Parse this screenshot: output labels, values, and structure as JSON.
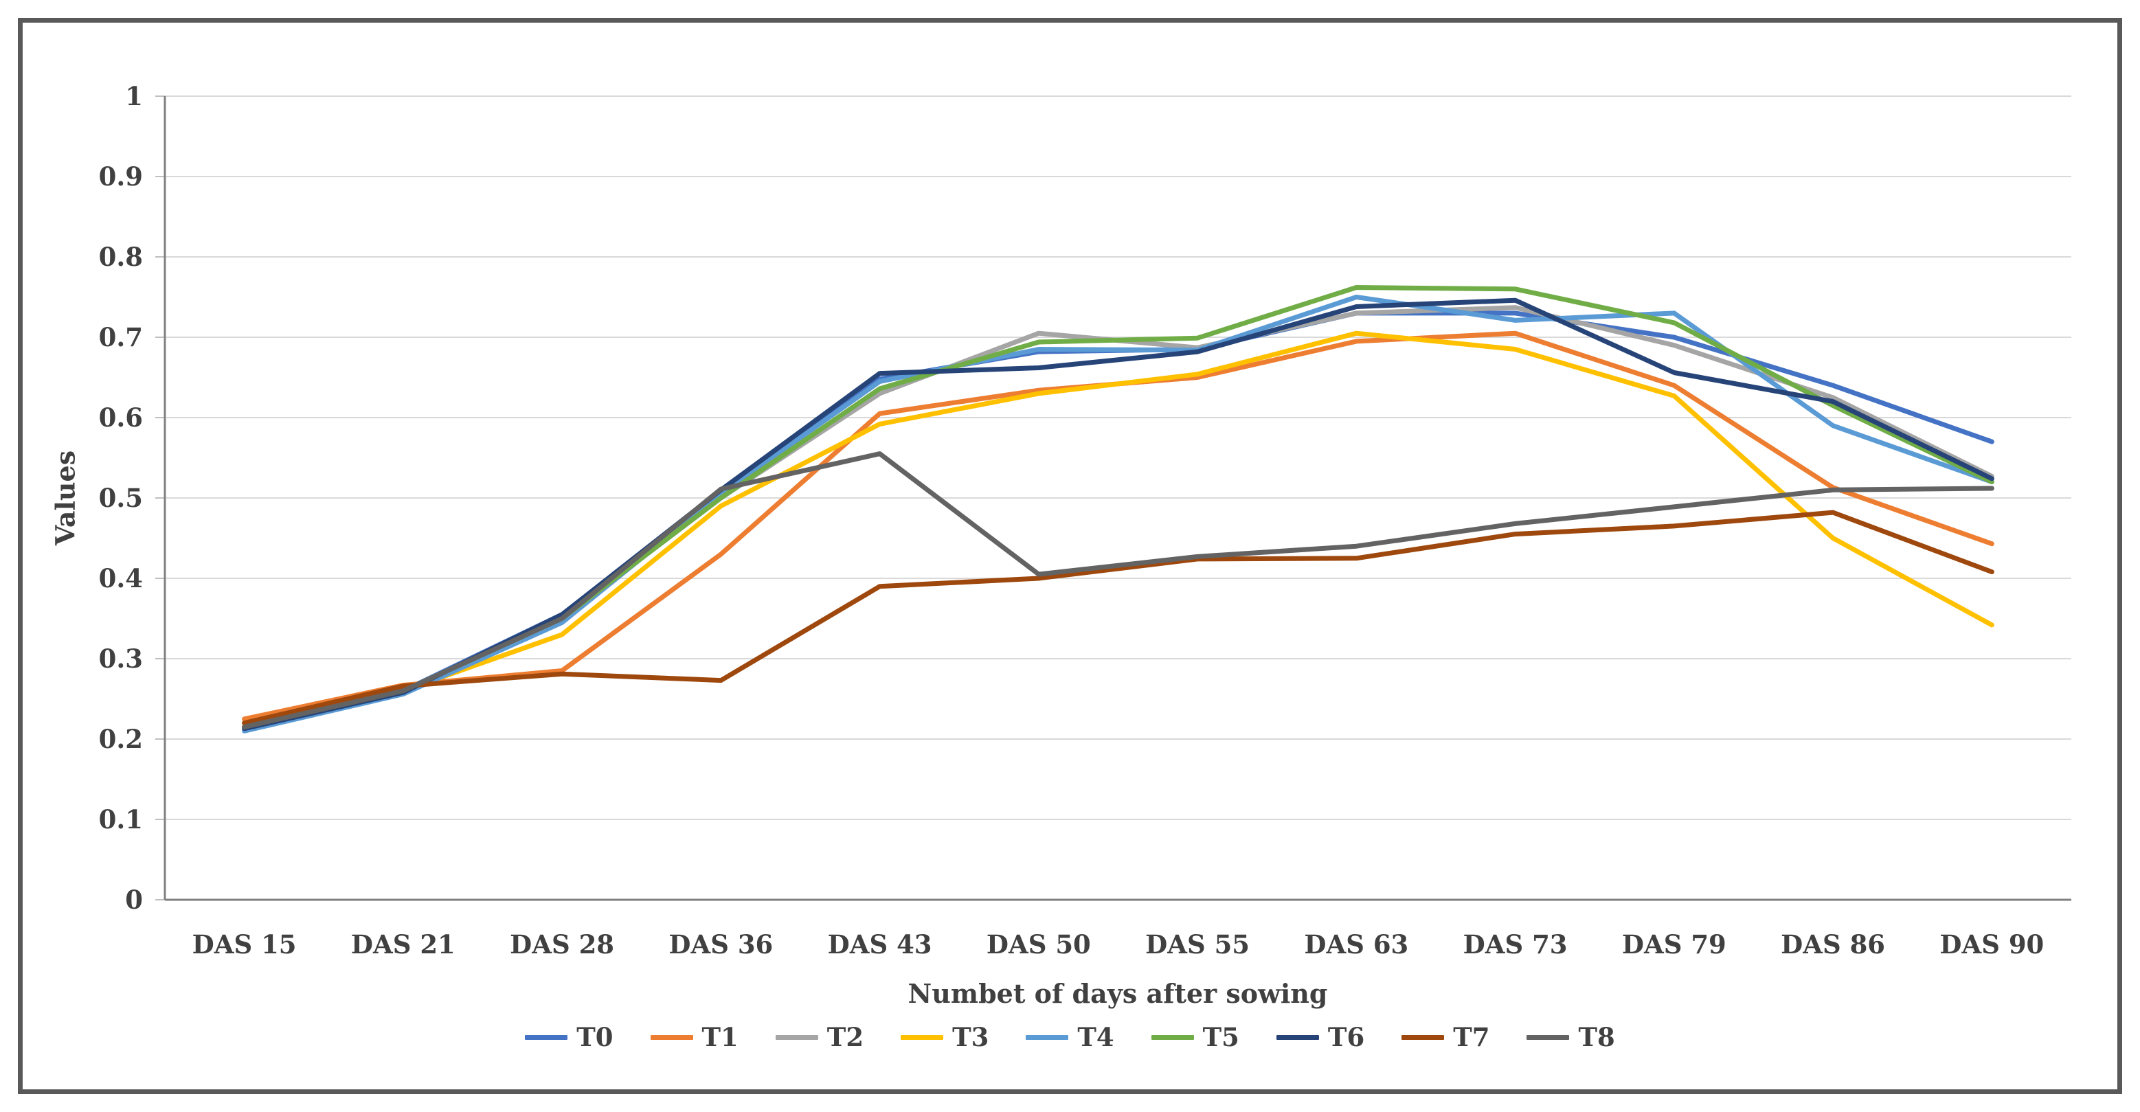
{
  "chart_data": {
    "type": "line",
    "title": "",
    "xlabel": "Numbet of days after sowing",
    "ylabel": "Values",
    "categories": [
      "DAS 15",
      "DAS 21",
      "DAS 28",
      "DAS 36",
      "DAS 43",
      "DAS 50",
      "DAS 55",
      "DAS 63",
      "DAS 73",
      "DAS 79",
      "DAS 86",
      "DAS 90"
    ],
    "series": [
      {
        "name": "T0",
        "color": "#4472C4",
        "values": [
          0.215,
          0.26,
          0.355,
          0.505,
          0.648,
          0.682,
          0.685,
          0.73,
          0.73,
          0.7,
          0.64,
          0.57
        ]
      },
      {
        "name": "T1",
        "color": "#ED7D31",
        "values": [
          0.225,
          0.267,
          0.285,
          0.43,
          0.605,
          0.634,
          0.65,
          0.695,
          0.705,
          0.64,
          0.513,
          0.443
        ]
      },
      {
        "name": "T2",
        "color": "#A5A5A5",
        "values": [
          0.215,
          0.26,
          0.35,
          0.5,
          0.63,
          0.705,
          0.687,
          0.73,
          0.737,
          0.69,
          0.625,
          0.527
        ]
      },
      {
        "name": "T3",
        "color": "#FFC000",
        "values": [
          0.22,
          0.26,
          0.33,
          0.49,
          0.592,
          0.63,
          0.654,
          0.705,
          0.685,
          0.627,
          0.45,
          0.342
        ]
      },
      {
        "name": "T4",
        "color": "#5B9BD5",
        "values": [
          0.21,
          0.256,
          0.345,
          0.505,
          0.645,
          0.685,
          0.684,
          0.75,
          0.721,
          0.73,
          0.59,
          0.52
        ]
      },
      {
        "name": "T5",
        "color": "#70AD47",
        "values": [
          0.215,
          0.26,
          0.35,
          0.5,
          0.636,
          0.694,
          0.699,
          0.762,
          0.76,
          0.718,
          0.615,
          0.52
        ]
      },
      {
        "name": "T6",
        "color": "#264478",
        "values": [
          0.213,
          0.258,
          0.355,
          0.51,
          0.655,
          0.662,
          0.682,
          0.738,
          0.746,
          0.656,
          0.62,
          0.524
        ]
      },
      {
        "name": "T7",
        "color": "#9E480E",
        "values": [
          0.22,
          0.266,
          0.281,
          0.273,
          0.39,
          0.4,
          0.424,
          0.425,
          0.455,
          0.465,
          0.482,
          0.408
        ]
      },
      {
        "name": "T8",
        "color": "#636363",
        "values": [
          0.215,
          0.26,
          0.35,
          0.511,
          0.555,
          0.405,
          0.427,
          0.44,
          0.468,
          0.489,
          0.51,
          0.512
        ]
      }
    ],
    "ylim": [
      0,
      1
    ],
    "ytick_step": 0.1,
    "grid": "horizontal",
    "legend_position": "bottom"
  },
  "style": {
    "grid_color": "#D9D9D9",
    "axis_color": "#808080",
    "tick_color": "#BFBFBF",
    "text_color": "#404040",
    "frame_color": "#595959"
  }
}
